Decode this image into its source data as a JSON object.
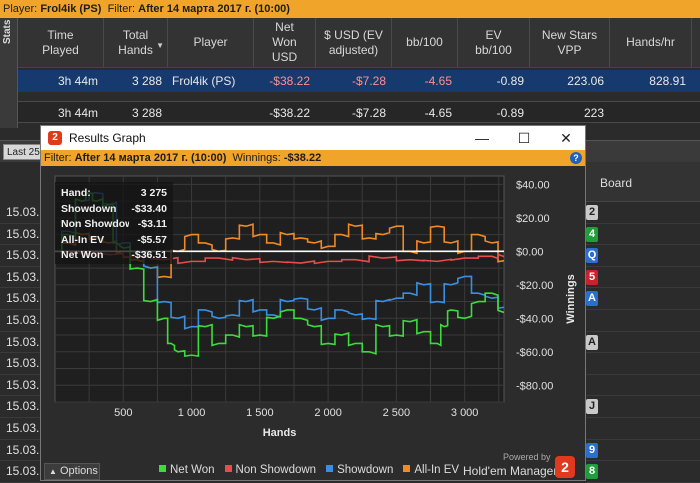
{
  "topbar": {
    "player_label": "Player:",
    "player": "Frol4ik (PS)",
    "filter_label": "Filter:",
    "filter": "After 14 марта 2017 г. (10:00)"
  },
  "stats_tab_label": "Stats",
  "table": {
    "headers": [
      "Time\nPlayed",
      "Total\nHands",
      "Player",
      "Net\nWon\nUSD",
      "$ USD (EV\nadjusted)",
      "bb/100",
      "EV\nbb/100",
      "New Stars\nVPP",
      "Hands/hr"
    ],
    "selected_row": [
      "3h 44m",
      "3 288",
      "Frol4ik (PS)",
      "-$38.22",
      "-$7.28",
      "-4.65",
      "-0.89",
      "223.06",
      "828.91"
    ],
    "total_row": [
      "3h 44m",
      "3 288",
      "",
      "-$38.22",
      "-$7.28",
      "-4.65",
      "-0.89",
      "223",
      ""
    ]
  },
  "lower": {
    "last_label": "Last 25",
    "board_header": "Board",
    "dates": [
      "15.03.",
      "15.03.",
      "15.03.",
      "15.03.",
      "15.03.",
      "15.03.",
      "15.03.",
      "15.03.",
      "15.03.",
      "15.03.",
      "15.03.",
      "15.03.",
      "15.03."
    ],
    "cards": [
      {
        "rank": "2",
        "bg": "#c9c9c9",
        "fg": "#222"
      },
      {
        "rank": "4",
        "bg": "#1f9e3b",
        "fg": "#fff"
      },
      {
        "rank": "Q",
        "bg": "#2a6fd0",
        "fg": "#fff"
      },
      {
        "rank": "5",
        "bg": "#c8232c",
        "fg": "#fff"
      },
      {
        "rank": "A",
        "bg": "#2a6fd0",
        "fg": "#fff"
      },
      {
        "rank": "",
        "bg": "transparent",
        "fg": "#fff"
      },
      {
        "rank": "A",
        "bg": "#c9c9c9",
        "fg": "#222"
      },
      {
        "rank": "",
        "bg": "transparent",
        "fg": "#fff"
      },
      {
        "rank": "",
        "bg": "transparent",
        "fg": "#fff"
      },
      {
        "rank": "J",
        "bg": "#c9c9c9",
        "fg": "#222"
      },
      {
        "rank": "",
        "bg": "transparent",
        "fg": "#fff"
      },
      {
        "rank": "9",
        "bg": "#2a6fd0",
        "fg": "#fff"
      },
      {
        "rank": "8",
        "bg": "#1f9e3b",
        "fg": "#fff"
      }
    ]
  },
  "graph_window": {
    "title": "Results Graph",
    "logo_text": "2",
    "filter_label": "Filter:",
    "filter_value": "After 14 марта 2017 г. (10:00)",
    "winnings_label": "Winnings:",
    "winnings_value": "-$38.22",
    "help": "?",
    "minimize": "—",
    "maximize": "☐",
    "close": "✕",
    "options_label": "Options",
    "powered_by": "Powered by",
    "brand": "Hold'em Manager",
    "brand_logo": "2"
  },
  "info_box": {
    "hand_label": "Hand:",
    "hand_value": "3 275",
    "showdown_label": "Showdown",
    "showdown_value": "-$33.40",
    "nonshowdown_label": "Non Showdown",
    "nonshowdown_value": "-$3.11",
    "allin_label": "All-In EV",
    "allin_value": "-$5.57",
    "netwon_label": "Net Won",
    "netwon_value": "-$36.51"
  },
  "chart_data": {
    "type": "line",
    "xlabel": "Hands",
    "ylabel": "Winnings",
    "xlim": [
      0,
      3288
    ],
    "ylim": [
      -90,
      45
    ],
    "x_ticks": [
      500,
      1000,
      1500,
      2000,
      2500,
      3000
    ],
    "x_tick_labels": [
      "500",
      "1 000",
      "1 500",
      "2 000",
      "2 500",
      "3 000"
    ],
    "y_ticks": [
      40,
      20,
      0,
      -20,
      -40,
      -60,
      -80
    ],
    "y_tick_labels": [
      "$40.00",
      "$20.00",
      "$0.00",
      "-$20.00",
      "-$40.00",
      "-$60.00",
      "-$80.00"
    ],
    "grid": true,
    "legend_position": "bottom",
    "series": [
      {
        "name": "Net Won",
        "color": "#3ddc3d",
        "x": [
          0,
          100,
          200,
          250,
          300,
          400,
          450,
          500,
          600,
          700,
          800,
          850,
          900,
          1000,
          1100,
          1200,
          1300,
          1400,
          1500,
          1600,
          1700,
          1800,
          1900,
          2000,
          2100,
          2200,
          2300,
          2400,
          2500,
          2600,
          2700,
          2800,
          2850,
          2900,
          3000,
          3100,
          3200,
          3288
        ],
        "y": [
          0,
          10,
          30,
          35,
          30,
          28,
          5,
          2,
          -10,
          -30,
          -40,
          -55,
          -60,
          -62,
          -45,
          -55,
          -50,
          -45,
          -50,
          -40,
          -35,
          -40,
          -45,
          -55,
          -50,
          -55,
          -60,
          -45,
          -50,
          -42,
          -48,
          -55,
          -45,
          -35,
          -40,
          -30,
          -25,
          -36.5
        ]
      },
      {
        "name": "Non Showdown",
        "color": "#e84c4c",
        "x": [
          0,
          200,
          400,
          600,
          800,
          1000,
          1200,
          1400,
          1600,
          1800,
          2000,
          2200,
          2400,
          2600,
          2800,
          3000,
          3200,
          3288
        ],
        "y": [
          0,
          -1,
          -2,
          -3,
          -5,
          -6,
          -4,
          -5,
          -6,
          -7,
          -6,
          -5,
          -4,
          -5,
          -6,
          -4,
          -3,
          -3.1
        ]
      },
      {
        "name": "Showdown",
        "color": "#3a8fe0",
        "x": [
          0,
          100,
          200,
          300,
          400,
          500,
          600,
          700,
          800,
          900,
          1000,
          1100,
          1200,
          1300,
          1400,
          1500,
          1600,
          1700,
          1800,
          1900,
          2000,
          2100,
          2200,
          2300,
          2400,
          2500,
          2600,
          2700,
          2800,
          2900,
          3000,
          3100,
          3200,
          3288
        ],
        "y": [
          0,
          12,
          30,
          35,
          28,
          5,
          0,
          -10,
          -30,
          -40,
          -45,
          -35,
          -40,
          -38,
          -30,
          -35,
          -38,
          -30,
          -28,
          -35,
          -40,
          -35,
          -38,
          -40,
          -30,
          -28,
          -25,
          -20,
          -30,
          -20,
          -15,
          -25,
          -28,
          -33.4
        ]
      },
      {
        "name": "All-In EV",
        "color": "#f08a24",
        "x": [
          0,
          100,
          200,
          300,
          400,
          500,
          600,
          700,
          800,
          900,
          1000,
          1100,
          1200,
          1300,
          1400,
          1500,
          1600,
          1700,
          1800,
          1900,
          2000,
          2100,
          2200,
          2300,
          2400,
          2500,
          2600,
          2700,
          2800,
          2900,
          3000,
          3100,
          3200,
          3288
        ],
        "y": [
          0,
          5,
          10,
          8,
          5,
          0,
          -5,
          -10,
          -15,
          0,
          10,
          5,
          0,
          8,
          15,
          10,
          5,
          10,
          8,
          5,
          3,
          10,
          15,
          8,
          10,
          15,
          0,
          5,
          15,
          5,
          0,
          10,
          5,
          -5.6
        ]
      }
    ]
  }
}
